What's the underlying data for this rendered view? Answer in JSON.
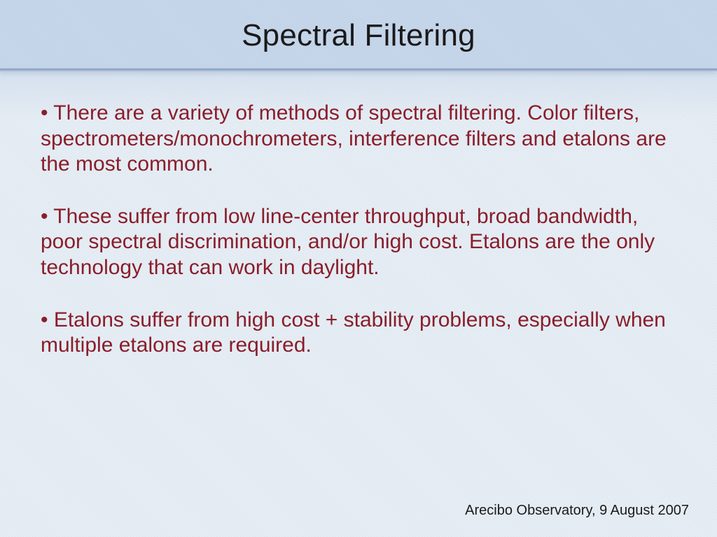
{
  "colors": {
    "bg_top": "#c6d6ea",
    "bg_mid": "#d7e2ef",
    "bg_body": "#e6edf4",
    "title": "#1a1a1a",
    "body": "#8a1d2a",
    "footer": "#1a1a1a"
  },
  "title": "Spectral Filtering",
  "bullets": [
    "• There are a variety of methods of spectral filtering. Color filters, spectrometers/monochrometers, interference filters and etalons are the most common.",
    "• These suffer from low line-center throughput, broad bandwidth, poor spectral discrimination, and/or high cost. Etalons are the only technology that can work in daylight.",
    "• Etalons suffer from high cost + stability problems, especially when multiple etalons are required."
  ],
  "footer": "Arecibo Observatory, 9 August 2007"
}
